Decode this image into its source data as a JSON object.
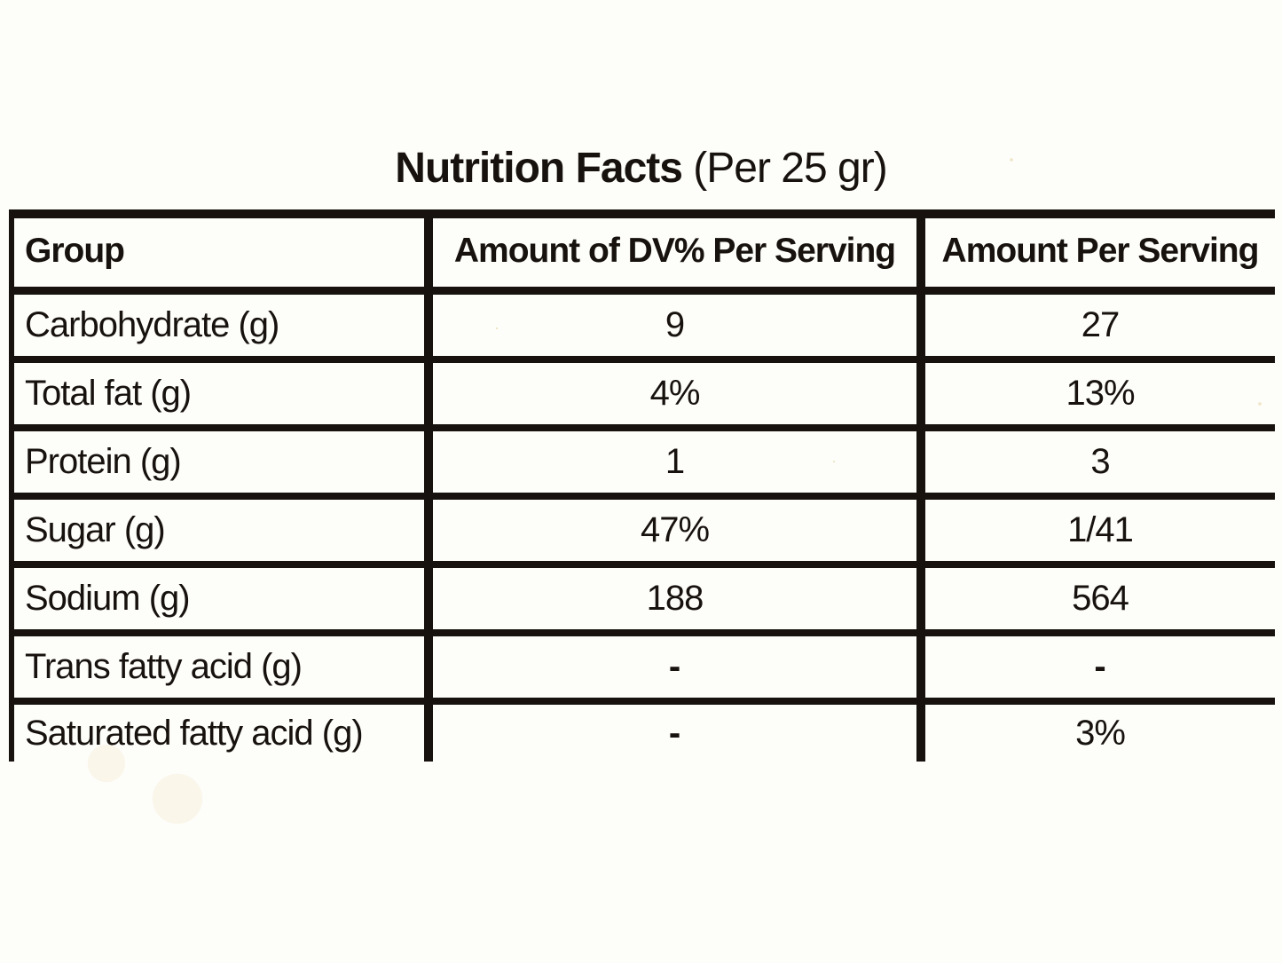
{
  "page": {
    "title_bold": "Nutrition Facts",
    "title_regular": " (Per 25 gr)"
  },
  "table": {
    "columns": {
      "group": "Group",
      "dv": "Amount of DV% Per Serving",
      "amount": "Amount Per Serving"
    },
    "rows": [
      {
        "label": "Carbohydrate (g)",
        "dv": "9",
        "amount": "27"
      },
      {
        "label": "Total fat (g)",
        "dv": "4%",
        "amount": "13%"
      },
      {
        "label": "Protein (g)",
        "dv": "1",
        "amount": "3"
      },
      {
        "label": "Sugar (g)",
        "dv": "47%",
        "amount": "1/41"
      },
      {
        "label": "Sodium (g)",
        "dv": "188",
        "amount": "564"
      },
      {
        "label": "Trans fatty acid (g)",
        "dv": "-",
        "amount": "-"
      },
      {
        "label": "Saturated fatty acid (g)",
        "dv": "-",
        "amount": "3%"
      }
    ],
    "colors": {
      "border": "#17120e",
      "text": "#17120e",
      "background": "#fdfdfa"
    }
  }
}
